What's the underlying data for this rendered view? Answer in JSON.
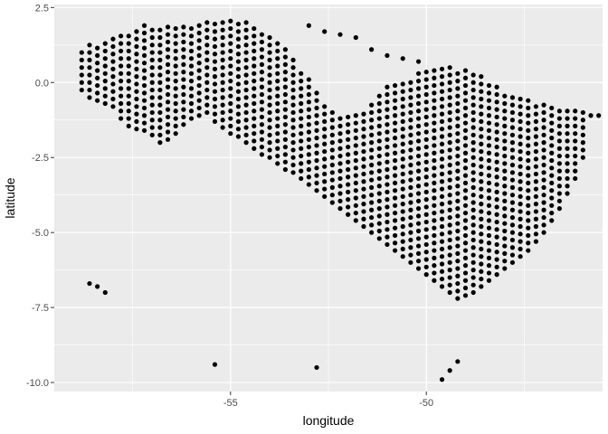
{
  "chart_data": {
    "type": "scatter",
    "title": "",
    "xlabel": "longitude",
    "ylabel": "latitude",
    "xlim": [
      -59.5,
      -45.5
    ],
    "ylim": [
      -10.3,
      2.6
    ],
    "x_major_ticks": [
      -55,
      -50
    ],
    "x_minor_ticks": [
      -57.5,
      -52.5,
      -47.5
    ],
    "y_major_ticks": [
      2.5,
      0.0,
      -2.5,
      -5.0,
      -7.5,
      -10.0
    ],
    "y_minor_ticks": [
      1.25,
      -1.25,
      -3.75,
      -6.25,
      -8.75
    ],
    "x_tick_labels": [
      "-55",
      "-50"
    ],
    "y_tick_labels": [
      "2.5",
      "0.0",
      "-2.5",
      "-5.0",
      "-7.5",
      "-10.0"
    ],
    "grid": true,
    "background": "#ebebeb",
    "grid_color": "#ffffff",
    "point_color": "#000000",
    "grid_spacing": 0.25,
    "columns": [
      {
        "x": -58.8,
        "ymin": -0.25,
        "ymax": 1.15
      },
      {
        "x": -58.6,
        "ymin": -0.5,
        "ymax": 1.25
      },
      {
        "x": -58.4,
        "ymin": -0.6,
        "ymax": 1.3
      },
      {
        "x": -58.2,
        "ymin": -0.7,
        "ymax": 1.4
      },
      {
        "x": -58.0,
        "ymin": -0.8,
        "ymax": 1.55
      },
      {
        "x": -57.8,
        "ymin": -1.2,
        "ymax": 1.65
      },
      {
        "x": -57.6,
        "ymin": -1.45,
        "ymax": 1.75
      },
      {
        "x": -57.4,
        "ymin": -1.55,
        "ymax": 1.85
      },
      {
        "x": -57.2,
        "ymin": -1.6,
        "ymax": 1.9
      },
      {
        "x": -57.0,
        "ymin": -1.75,
        "ymax": 1.95
      },
      {
        "x": -56.8,
        "ymin": -2.0,
        "ymax": 1.95
      },
      {
        "x": -56.6,
        "ymin": -1.9,
        "ymax": 1.95
      },
      {
        "x": -56.4,
        "ymin": -1.7,
        "ymax": 1.95
      },
      {
        "x": -56.2,
        "ymin": -1.4,
        "ymax": 1.95
      },
      {
        "x": -56.0,
        "ymin": -1.2,
        "ymax": 1.95
      },
      {
        "x": -55.8,
        "ymin": -1.1,
        "ymax": 1.95
      },
      {
        "x": -55.6,
        "ymin": -1.0,
        "ymax": 2.05
      },
      {
        "x": -55.4,
        "ymin": -1.3,
        "ymax": 2.05
      },
      {
        "x": -55.2,
        "ymin": -1.5,
        "ymax": 2.05
      },
      {
        "x": -55.0,
        "ymin": -1.7,
        "ymax": 2.05
      },
      {
        "x": -54.8,
        "ymin": -1.8,
        "ymax": 2.05
      },
      {
        "x": -54.6,
        "ymin": -2.0,
        "ymax": 2.05
      },
      {
        "x": -54.4,
        "ymin": -2.2,
        "ymax": 1.8
      },
      {
        "x": -54.2,
        "ymin": -2.4,
        "ymax": 1.6
      },
      {
        "x": -54.0,
        "ymin": -2.5,
        "ymax": 1.5
      },
      {
        "x": -53.8,
        "ymin": -2.7,
        "ymax": 1.4
      },
      {
        "x": -53.6,
        "ymin": -2.9,
        "ymax": 1.2
      },
      {
        "x": -53.4,
        "ymin": -3.0,
        "ymax": 0.9
      },
      {
        "x": -53.2,
        "ymin": -3.2,
        "ymax": 0.5
      },
      {
        "x": -53.0,
        "ymin": -3.4,
        "ymax": 0.2
      },
      {
        "x": -52.8,
        "ymin": -3.6,
        "ymax": -0.2
      },
      {
        "x": -52.6,
        "ymin": -3.8,
        "ymax": -0.6
      },
      {
        "x": -52.4,
        "ymin": -4.0,
        "ymax": -0.9
      },
      {
        "x": -52.2,
        "ymin": -4.2,
        "ymax": -1.1
      },
      {
        "x": -52.0,
        "ymin": -4.4,
        "ymax": -1.15
      },
      {
        "x": -51.8,
        "ymin": -4.6,
        "ymax": -1.1
      },
      {
        "x": -51.6,
        "ymin": -4.8,
        "ymax": -0.9
      },
      {
        "x": -51.4,
        "ymin": -5.0,
        "ymax": -0.6
      },
      {
        "x": -51.2,
        "ymin": -5.2,
        "ymax": -0.3
      },
      {
        "x": -51.0,
        "ymin": -5.4,
        "ymax": -0.1
      },
      {
        "x": -50.8,
        "ymin": -5.6,
        "ymax": 0.05
      },
      {
        "x": -50.6,
        "ymin": -5.8,
        "ymax": 0.1
      },
      {
        "x": -50.4,
        "ymin": -6.0,
        "ymax": 0.2
      },
      {
        "x": -50.2,
        "ymin": -6.2,
        "ymax": 0.3
      },
      {
        "x": -50.0,
        "ymin": -6.4,
        "ymax": 0.4
      },
      {
        "x": -49.8,
        "ymin": -6.6,
        "ymax": 0.5
      },
      {
        "x": -49.6,
        "ymin": -6.8,
        "ymax": 0.55
      },
      {
        "x": -49.4,
        "ymin": -7.0,
        "ymax": 0.55
      },
      {
        "x": -49.2,
        "ymin": -7.2,
        "ymax": 0.5
      },
      {
        "x": -49.0,
        "ymin": -7.1,
        "ymax": 0.4
      },
      {
        "x": -48.8,
        "ymin": -7.0,
        "ymax": 0.3
      },
      {
        "x": -48.6,
        "ymin": -6.8,
        "ymax": 0.2
      },
      {
        "x": -48.4,
        "ymin": -6.6,
        "ymax": 0.05
      },
      {
        "x": -48.2,
        "ymin": -6.4,
        "ymax": -0.1
      },
      {
        "x": -48.0,
        "ymin": -6.2,
        "ymax": -0.3
      },
      {
        "x": -47.8,
        "ymin": -6.0,
        "ymax": -0.4
      },
      {
        "x": -47.6,
        "ymin": -5.8,
        "ymax": -0.5
      },
      {
        "x": -47.4,
        "ymin": -5.6,
        "ymax": -0.55
      },
      {
        "x": -47.2,
        "ymin": -5.3,
        "ymax": -0.6
      },
      {
        "x": -47.0,
        "ymin": -5.0,
        "ymax": -0.65
      },
      {
        "x": -46.8,
        "ymin": -4.6,
        "ymax": -0.7
      },
      {
        "x": -46.6,
        "ymin": -4.2,
        "ymax": -0.75
      },
      {
        "x": -46.4,
        "ymin": -3.7,
        "ymax": -0.8
      },
      {
        "x": -46.2,
        "ymin": -3.2,
        "ymax": -0.9
      },
      {
        "x": -46.0,
        "ymin": -2.5,
        "ymax": -1.0
      }
    ],
    "extra_points": [
      {
        "x": -53.0,
        "y": 1.9
      },
      {
        "x": -52.6,
        "y": 1.7
      },
      {
        "x": -52.2,
        "y": 1.6
      },
      {
        "x": -51.8,
        "y": 1.5
      },
      {
        "x": -51.4,
        "y": 1.1
      },
      {
        "x": -51.0,
        "y": 0.9
      },
      {
        "x": -50.6,
        "y": 0.8
      },
      {
        "x": -50.2,
        "y": 0.7
      },
      {
        "x": -45.8,
        "y": -1.1
      },
      {
        "x": -45.6,
        "y": -1.1
      },
      {
        "x": -58.6,
        "y": -6.7
      },
      {
        "x": -58.4,
        "y": -6.8
      },
      {
        "x": -58.2,
        "y": -7.0
      },
      {
        "x": -55.4,
        "y": -9.4
      },
      {
        "x": -52.8,
        "y": -9.5
      },
      {
        "x": -49.6,
        "y": -9.9
      },
      {
        "x": -49.4,
        "y": -9.6
      },
      {
        "x": -49.2,
        "y": -9.3
      }
    ]
  }
}
